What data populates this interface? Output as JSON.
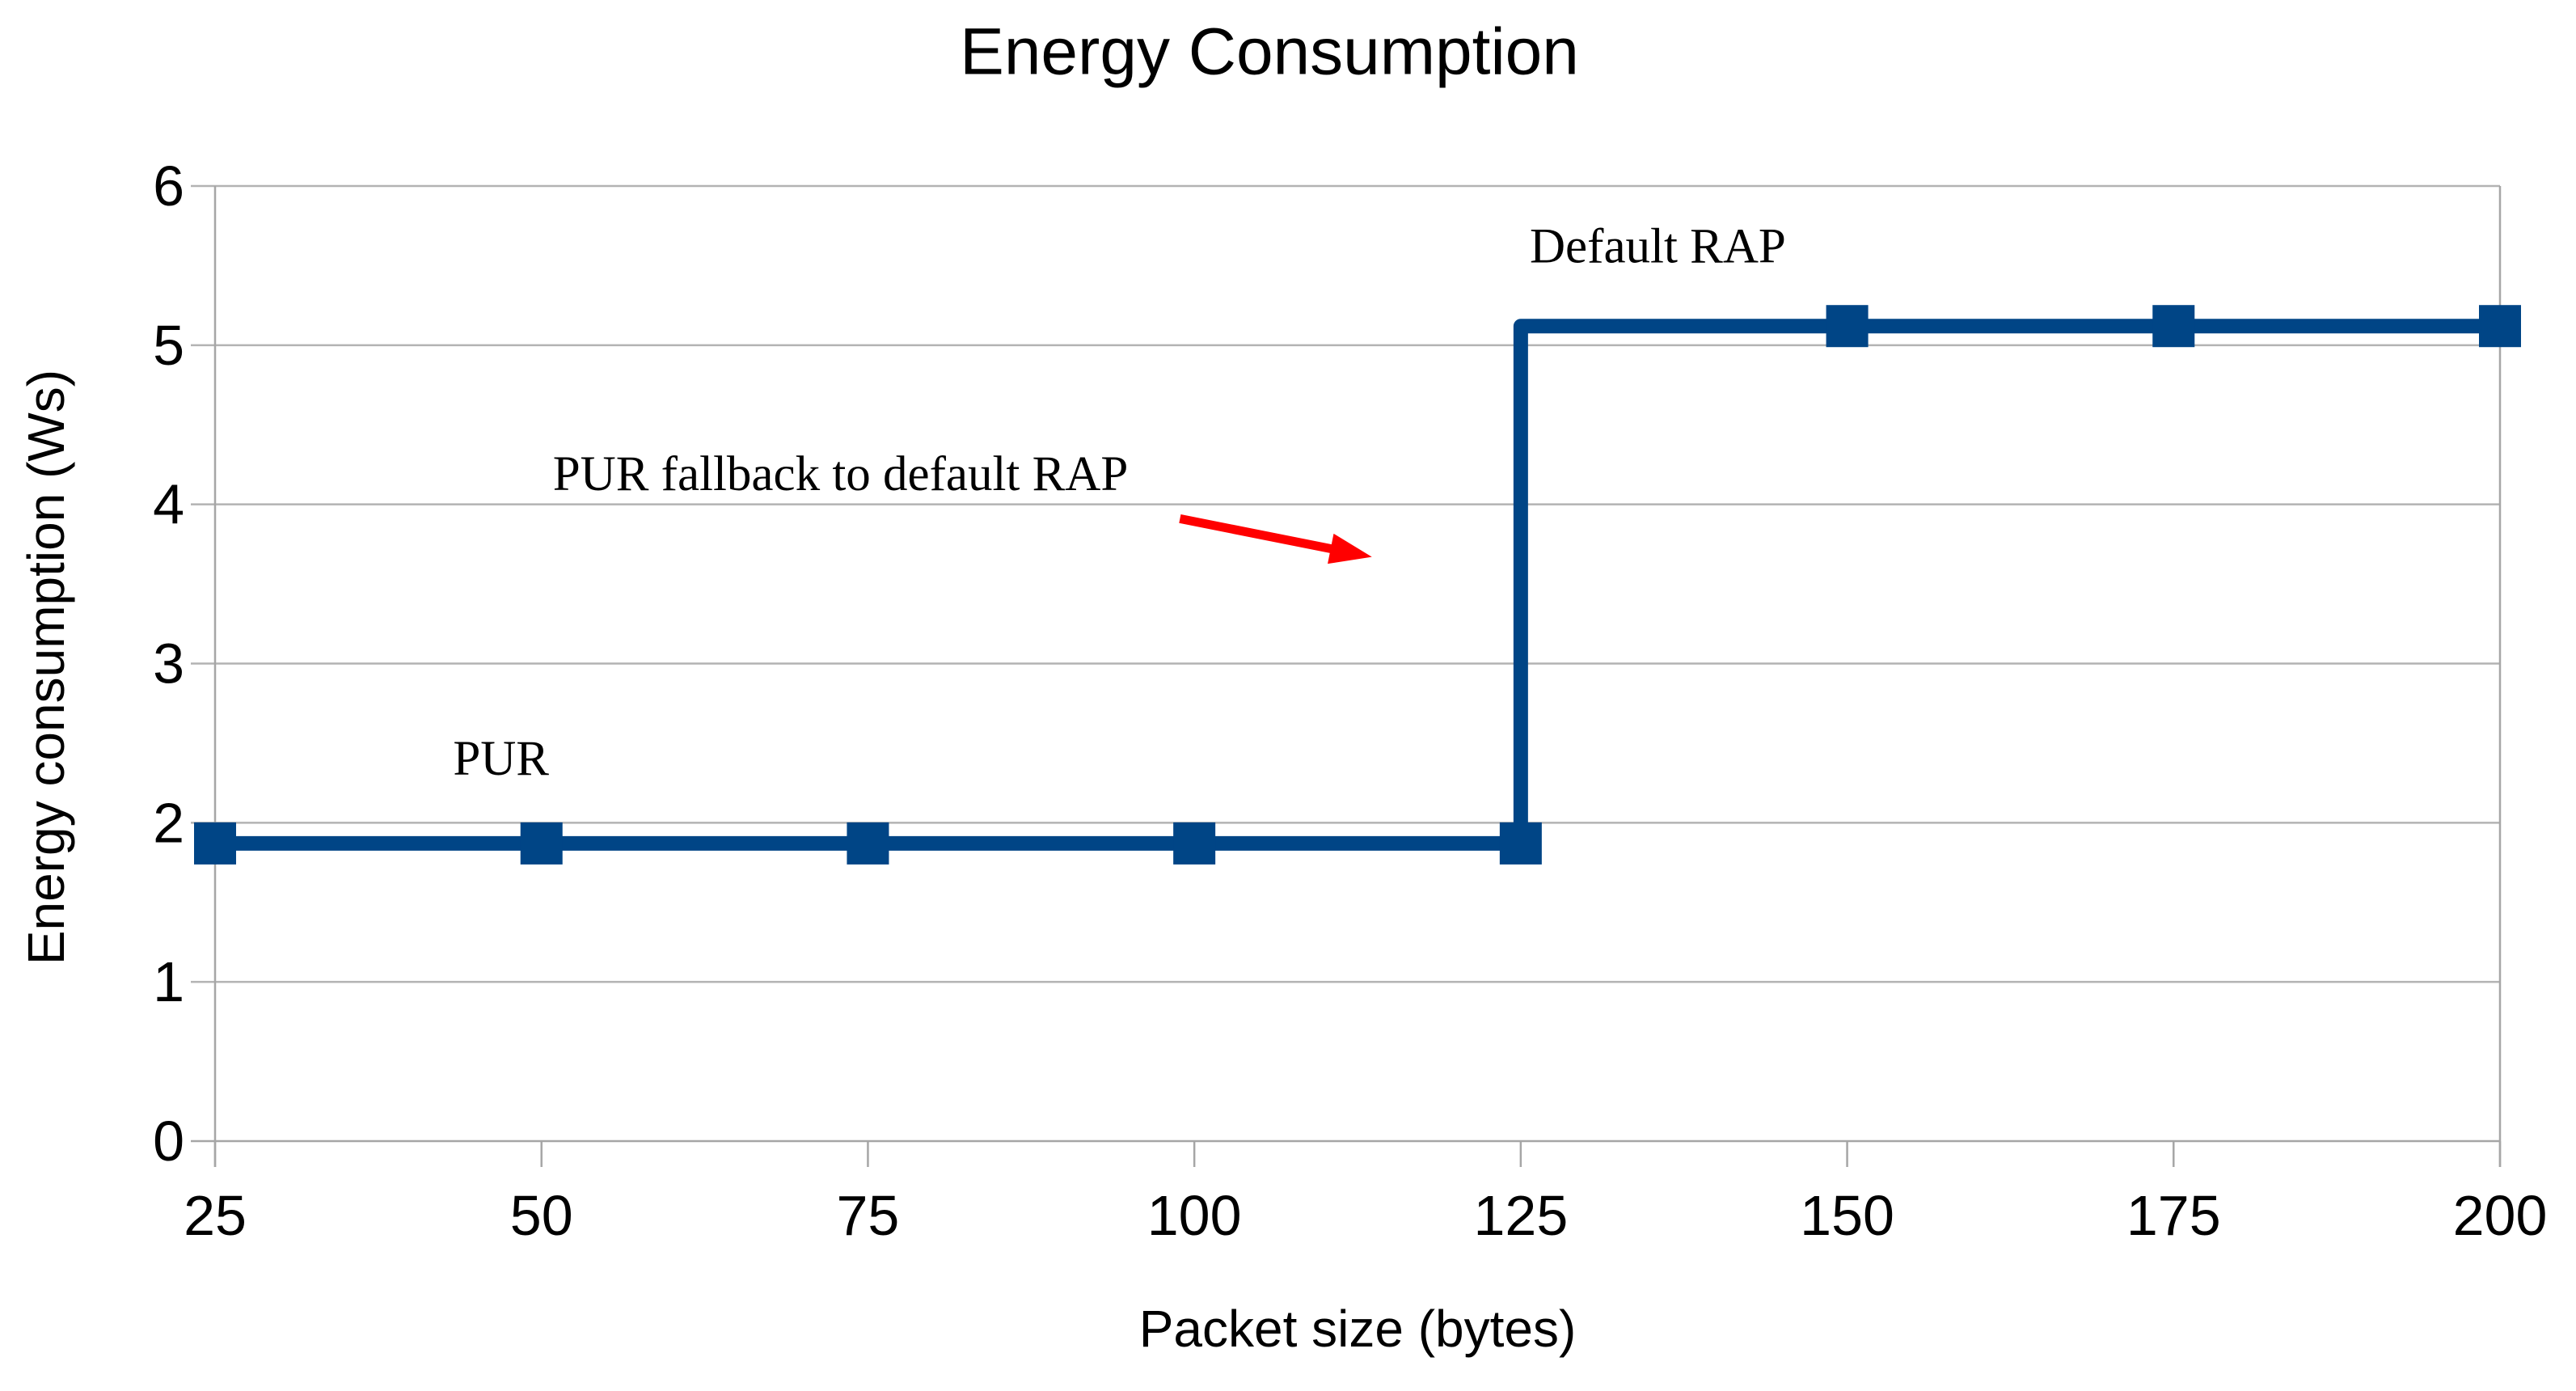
{
  "chart_data": {
    "type": "line",
    "title": "Energy Consumption",
    "xlabel": "Packet size (bytes)",
    "ylabel": "Energy consumption (Ws)",
    "x": [
      25,
      50,
      75,
      100,
      125,
      150,
      175,
      200
    ],
    "series": [
      {
        "name": "Energy consumption",
        "values": [
          1.87,
          1.87,
          1.87,
          1.87,
          1.87,
          5.12,
          5.12,
          5.12
        ],
        "color": "#004586",
        "marker": "square",
        "step": "vertical-riser-at-value-change"
      }
    ],
    "xlim": [
      25,
      200
    ],
    "ylim": [
      0,
      6
    ],
    "x_ticks": [
      25,
      50,
      75,
      100,
      125,
      150,
      175,
      200
    ],
    "y_ticks": [
      0,
      1,
      2,
      3,
      4,
      5,
      6
    ],
    "grid": "horizontal-only",
    "legend": "none",
    "annotations": [
      {
        "id": "pur",
        "text": "PUR",
        "x": 46.9,
        "y": 2.4
      },
      {
        "id": "default-rap",
        "text": "Default RAP",
        "x": 135.5,
        "y": 5.62
      },
      {
        "id": "fallback",
        "text": "PUR fallback to default RAP",
        "x": 72.9,
        "y": 4.19
      }
    ],
    "arrow": {
      "id": "fallback-arrow",
      "from_x": 98.9,
      "from_y": 3.91,
      "to_x": 113.6,
      "to_y": 3.67,
      "color": "#ff0000"
    },
    "colors": {
      "line": "#004586",
      "grid": "#b3b3b3",
      "axis": "#a6a6a6",
      "text": "#000000",
      "arrow": "#ff0000"
    }
  }
}
